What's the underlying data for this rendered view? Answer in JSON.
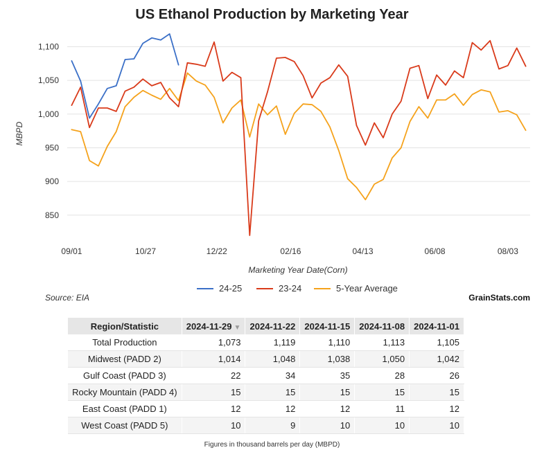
{
  "chart_data": {
    "type": "line",
    "title": "US Ethanol Production by Marketing Year",
    "xlabel": "Marketing Year Date(Corn)",
    "ylabel": "MBPD",
    "ylim": [
      820,
      1120
    ],
    "yticks": [
      850,
      900,
      950,
      1000,
      1050,
      1100
    ],
    "ytick_labels": [
      "850",
      "900",
      "950",
      "1,000",
      "1,050",
      "1,100"
    ],
    "xticks": [
      {
        "index": 0,
        "label": "09/01"
      },
      {
        "index": 8.3,
        "label": "10/27"
      },
      {
        "index": 16.3,
        "label": "12/22"
      },
      {
        "index": 24.6,
        "label": "02/16"
      },
      {
        "index": 32.7,
        "label": "04/13"
      },
      {
        "index": 40.8,
        "label": "06/08"
      },
      {
        "index": 49,
        "label": "08/03"
      }
    ],
    "grid": true,
    "legend_position": "bottom-center",
    "series": [
      {
        "name": "24-25",
        "color": "#3a6fc7",
        "values": [
          1079,
          1049,
          994,
          1015,
          1038,
          1042,
          1081,
          1082,
          1105,
          1113,
          1110,
          1119,
          1073
        ]
      },
      {
        "name": "23-24",
        "color": "#d93a1a",
        "values": [
          1013,
          1040,
          980,
          1009,
          1009,
          1004,
          1034,
          1040,
          1052,
          1042,
          1047,
          1024,
          1011,
          1076,
          1074,
          1071,
          1107,
          1049,
          1062,
          1054,
          820,
          990,
          1033,
          1083,
          1084,
          1078,
          1057,
          1024,
          1046,
          1054,
          1073,
          1056,
          983,
          954,
          987,
          965,
          1000,
          1019,
          1068,
          1072,
          1023,
          1058,
          1043,
          1064,
          1054,
          1106,
          1095,
          1109,
          1067,
          1072,
          1098,
          1071
        ]
      },
      {
        "name": "5-Year Average",
        "color": "#f5a21b",
        "values": [
          977,
          974,
          931,
          923,
          952,
          974,
          1011,
          1025,
          1035,
          1028,
          1022,
          1038,
          1020,
          1061,
          1049,
          1043,
          1025,
          987,
          1009,
          1021,
          966,
          1015,
          999,
          1012,
          970,
          1001,
          1015,
          1014,
          1004,
          981,
          946,
          904,
          891,
          873,
          896,
          903,
          935,
          950,
          989,
          1011,
          994,
          1021,
          1021,
          1030,
          1013,
          1029,
          1036,
          1033,
          1003,
          1005,
          999,
          976
        ]
      }
    ]
  },
  "source_note": "Source: EIA",
  "brand": "GrainStats.com",
  "table": {
    "headers": [
      "Region/Statistic",
      "2024-11-29",
      "2024-11-22",
      "2024-11-15",
      "2024-11-08",
      "2024-11-01"
    ],
    "sort_arrow": "▼",
    "rows": [
      {
        "label": "Total Production",
        "values": [
          "1,073",
          "1,119",
          "1,110",
          "1,113",
          "1,105"
        ]
      },
      {
        "label": "Midwest (PADD 2)",
        "values": [
          "1,014",
          "1,048",
          "1,038",
          "1,050",
          "1,042"
        ]
      },
      {
        "label": "Gulf Coast (PADD 3)",
        "values": [
          "22",
          "34",
          "35",
          "28",
          "26"
        ]
      },
      {
        "label": "Rocky Mountain (PADD 4)",
        "values": [
          "15",
          "15",
          "15",
          "15",
          "15"
        ]
      },
      {
        "label": "East Coast (PADD 1)",
        "values": [
          "12",
          "12",
          "12",
          "11",
          "12"
        ]
      },
      {
        "label": "West Coast (PADD 5)",
        "values": [
          "10",
          "9",
          "10",
          "10",
          "10"
        ]
      }
    ]
  },
  "footnote": "Figures in thousand barrels per day (MBPD)"
}
